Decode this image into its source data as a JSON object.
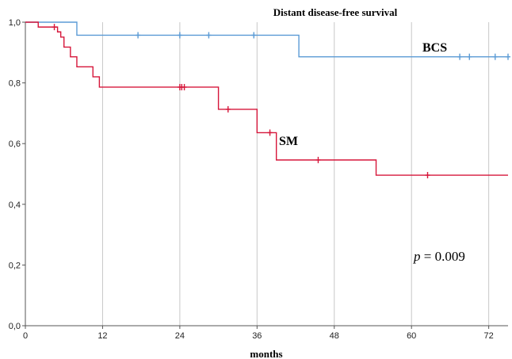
{
  "chart_data": {
    "type": "line",
    "subtype": "kaplan-meier step curve",
    "title": "Distant disease-free survival",
    "xlabel": "months",
    "ylabel": "",
    "xlim": [
      0,
      75
    ],
    "ylim": [
      0,
      1
    ],
    "x_ticks": [
      0,
      12,
      24,
      36,
      48,
      60,
      72
    ],
    "x_tick_labels": [
      "0",
      "12",
      "24",
      "36",
      "48",
      "60",
      "72"
    ],
    "y_ticks": [
      0,
      0.2,
      0.4,
      0.6,
      0.8,
      1.0
    ],
    "y_tick_labels": [
      "0,0",
      "0,2",
      "0,4",
      "0,6",
      "0,8",
      "1,0"
    ],
    "grid": "vertical lines at x ticks",
    "legend": "none (series labelled on plot)",
    "series": [
      {
        "name": "BCS",
        "color": "#5b9bd5",
        "steps": [
          [
            0,
            1.0
          ],
          [
            8,
            0.957
          ],
          [
            42.5,
            0.886
          ],
          [
            75,
            0.886
          ]
        ],
        "censored_x": [
          17.5,
          24,
          28.5,
          35.5,
          67.5,
          69,
          73,
          75
        ]
      },
      {
        "name": "SM",
        "color": "#d6163a",
        "steps": [
          [
            0,
            1.0
          ],
          [
            2,
            0.984
          ],
          [
            5,
            0.968
          ],
          [
            5.5,
            0.951
          ],
          [
            6,
            0.918
          ],
          [
            7,
            0.886
          ],
          [
            8,
            0.853
          ],
          [
            10.5,
            0.82
          ],
          [
            11.5,
            0.786
          ],
          [
            30,
            0.713
          ],
          [
            36,
            0.636
          ],
          [
            39,
            0.546
          ],
          [
            54.5,
            0.496
          ],
          [
            75,
            0.496
          ]
        ],
        "censored_x": [
          4.5,
          24,
          24.3,
          24.7,
          31.5,
          38,
          45.5,
          62.5
        ]
      }
    ],
    "annotations": [
      {
        "p_label": "p",
        "text": " = 0.009"
      }
    ]
  }
}
